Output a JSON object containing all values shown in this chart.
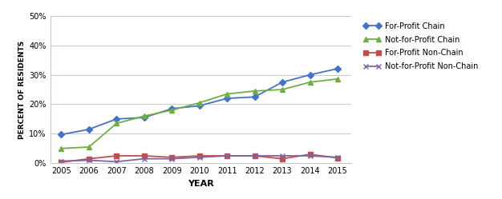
{
  "years": [
    2005,
    2006,
    2007,
    2008,
    2009,
    2010,
    2011,
    2012,
    2013,
    2014,
    2015
  ],
  "for_profit_chain": [
    9.7,
    11.5,
    15.0,
    15.5,
    18.5,
    19.5,
    22.0,
    22.5,
    27.5,
    30.0,
    32.1
  ],
  "not_for_profit_chain": [
    5.0,
    5.5,
    13.5,
    16.0,
    18.0,
    20.5,
    23.5,
    24.5,
    25.0,
    27.5,
    28.6
  ],
  "for_profit_non_chain": [
    0.3,
    1.5,
    2.5,
    2.5,
    2.0,
    2.5,
    2.5,
    2.5,
    1.5,
    3.0,
    1.8
  ],
  "not_for_profit_non_chain": [
    0.7,
    1.0,
    0.5,
    1.5,
    1.5,
    2.0,
    2.5,
    2.5,
    2.5,
    2.5,
    2.0
  ],
  "colors": {
    "for_profit_chain": "#4472C4",
    "not_for_profit_chain": "#70AD47",
    "for_profit_non_chain": "#C0504D",
    "not_for_profit_non_chain": "#8064A2"
  },
  "markers": {
    "for_profit_chain": "D",
    "not_for_profit_chain": "^",
    "for_profit_non_chain": "s",
    "not_for_profit_non_chain": "x"
  },
  "legend_labels": [
    "For-Profit Chain",
    "Not-for-Profit Chain",
    "For-Profit Non-Chain",
    "Not-for-Profit Non-Chain"
  ],
  "xlabel": "YEAR",
  "ylabel": "PERCENT OF RESIDENTS",
  "ylim": [
    0,
    50
  ],
  "yticks": [
    0,
    10,
    20,
    30,
    40,
    50
  ],
  "ytick_labels": [
    "0%",
    "10%",
    "20%",
    "30%",
    "40%",
    "50%"
  ],
  "background_color": "#ffffff",
  "grid_color": "#c8c8c8",
  "figsize": [
    6.26,
    2.49
  ],
  "dpi": 100
}
